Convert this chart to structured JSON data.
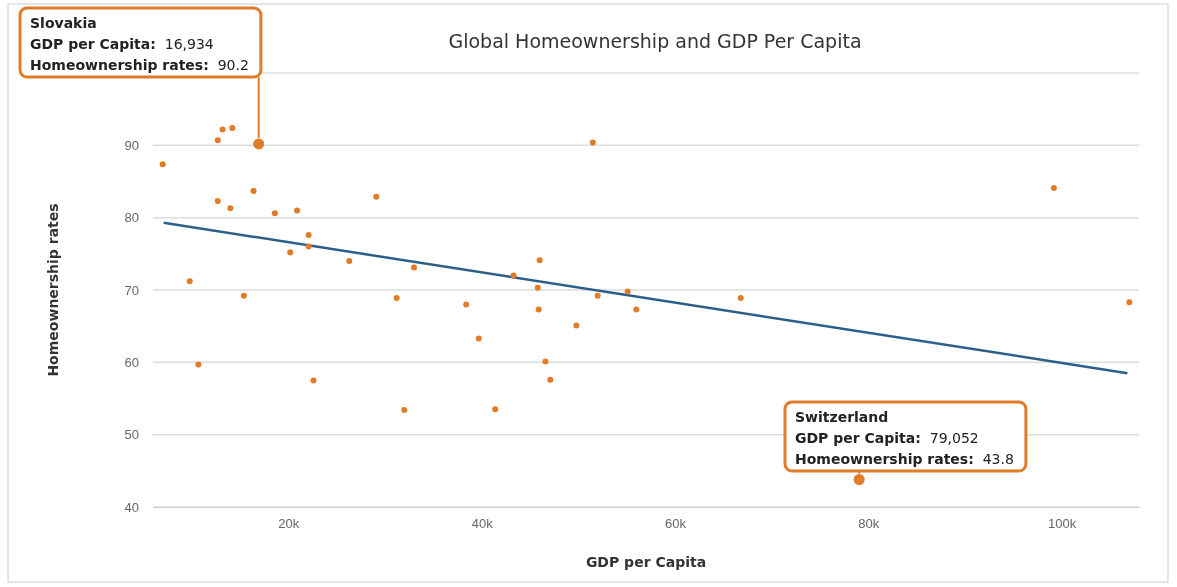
{
  "chart_data": {
    "type": "scatter",
    "title": "Global Homeownership and GDP Per Capita",
    "xlabel": "GDP per Capita",
    "ylabel": "Homeownership rates",
    "xlim": [
      6000,
      108000
    ],
    "xticks": [
      {
        "value": 20000,
        "label": "20k"
      },
      {
        "value": 40000,
        "label": "40k"
      },
      {
        "value": 60000,
        "label": "60k"
      },
      {
        "value": 80000,
        "label": "80k"
      },
      {
        "value": 100000,
        "label": "100k"
      }
    ],
    "ylim": [
      40,
      100
    ],
    "yticks": [
      40,
      50,
      60,
      70,
      80,
      90,
      {
        "value": 100,
        "label": null
      }
    ],
    "grid": "y",
    "marker": "circle",
    "series": [
      {
        "color": "#e07b28",
        "sizes": [
          0.3,
          0.3,
          0.3,
          0.3,
          1,
          0.3,
          0.3,
          0.3,
          0.3,
          0.3,
          0.3,
          0.3,
          0.3,
          0.3,
          0.3,
          0.3,
          0.3,
          0.3,
          0.3,
          0.3,
          0.3,
          0.3,
          0.3,
          0.3,
          0.3,
          0.3,
          0.3,
          0.3,
          0.3,
          0.3,
          0.3,
          0.3,
          0.3,
          0.3,
          0.3,
          0.3,
          0.3,
          0.3,
          0.3,
          1
        ],
        "x": [
          7000,
          12700,
          13200,
          14200,
          16934,
          16400,
          12700,
          14000,
          18600,
          20900,
          29100,
          22100,
          22100,
          20200,
          26300,
          33000,
          9800,
          15400,
          31200,
          38400,
          10700,
          22600,
          32000,
          51500,
          46000,
          43300,
          45800,
          52000,
          55100,
          56000,
          45900,
          66800,
          49800,
          39700,
          46600,
          47100,
          41400,
          99200,
          107000,
          79052
        ],
        "values": [
          87.4,
          90.7,
          92.2,
          92.4,
          90.2,
          83.7,
          82.3,
          81.3,
          80.6,
          81.0,
          82.9,
          77.6,
          76.0,
          75.2,
          74.0,
          73.1,
          71.2,
          69.2,
          68.9,
          68.0,
          59.7,
          57.5,
          53.4,
          90.4,
          74.1,
          72.0,
          70.3,
          69.2,
          69.8,
          67.3,
          67.3,
          68.9,
          65.1,
          63.3,
          60.1,
          57.6,
          53.5,
          84.1,
          68.3,
          43.8
        ]
      },
      {
        "type": "line",
        "color": "#2b5f8a",
        "x": [
          7100,
          106800
        ],
        "values": [
          79.3,
          58.5
        ],
        "marker": "none",
        "line_style": "solid"
      }
    ],
    "annotations": [
      {
        "text": "Slovakia\nGDP per Capita: 16,934\nHomeownership rates: 90.2",
        "x": 16934,
        "y": 90.2
      },
      {
        "text": "Switzerland\nGDP per Capita: 79,052\nHomeownership rates: 43.8",
        "x": 79052,
        "y": 43.8
      }
    ]
  }
}
